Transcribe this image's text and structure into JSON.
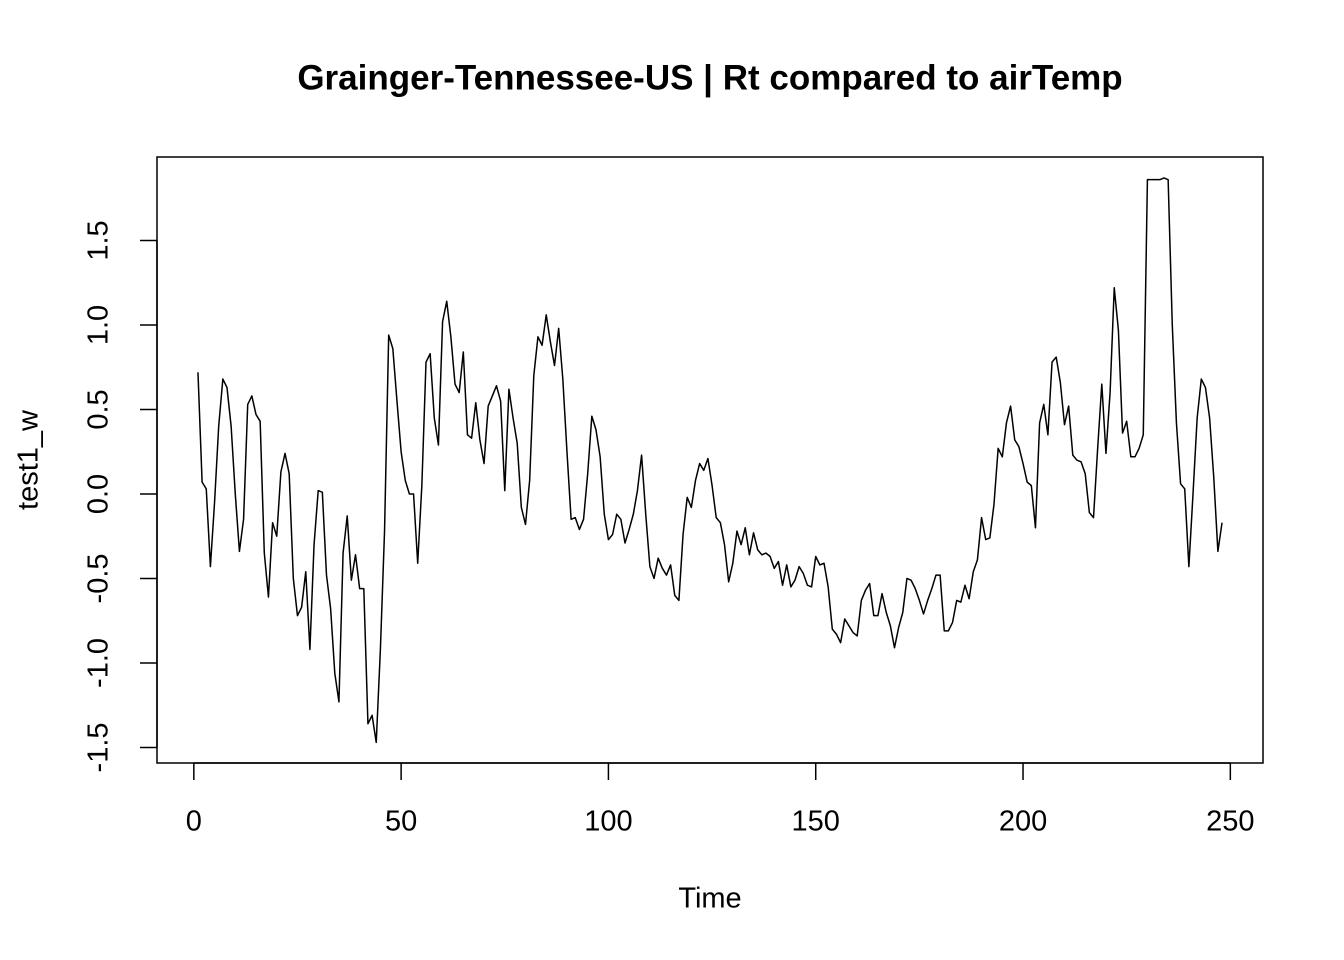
{
  "chart_data": {
    "type": "line",
    "title": "Grainger-Tennessee-US | Rt compared to airTemp",
    "x_label": "Time",
    "y_label": "test1_w",
    "color": "#000000",
    "xlim": [
      -8.88,
      257.88
    ],
    "ylim": [
      -1.592,
      1.994
    ],
    "xticks": [
      0,
      50,
      100,
      150,
      200,
      250
    ],
    "yticks": [
      -1.5,
      {
        "value": -1,
        "label": "-1.0"
      },
      -0.5,
      {
        "value": 0,
        "label": "0.0"
      },
      0.5,
      {
        "value": 1,
        "label": "1.0"
      },
      1.5
    ],
    "x": [
      1,
      2,
      3,
      4,
      5,
      6,
      7,
      8,
      9,
      10,
      11,
      12,
      13,
      14,
      15,
      16,
      17,
      18,
      19,
      20,
      21,
      22,
      23,
      24,
      25,
      26,
      27,
      28,
      29,
      30,
      31,
      32,
      33,
      34,
      35,
      36,
      37,
      38,
      39,
      40,
      41,
      42,
      43,
      44,
      45,
      46,
      47,
      48,
      49,
      50,
      51,
      52,
      53,
      54,
      55,
      56,
      57,
      58,
      59,
      60,
      61,
      62,
      63,
      64,
      65,
      66,
      67,
      68,
      69,
      70,
      71,
      72,
      73,
      74,
      75,
      76,
      77,
      78,
      79,
      80,
      81,
      82,
      83,
      84,
      85,
      86,
      87,
      88,
      89,
      90,
      91,
      92,
      93,
      94,
      95,
      96,
      97,
      98,
      99,
      100,
      101,
      102,
      103,
      104,
      105,
      106,
      107,
      108,
      109,
      110,
      111,
      112,
      113,
      114,
      115,
      116,
      117,
      118,
      119,
      120,
      121,
      122,
      123,
      124,
      125,
      126,
      127,
      128,
      129,
      130,
      131,
      132,
      133,
      134,
      135,
      136,
      137,
      138,
      139,
      140,
      141,
      142,
      143,
      144,
      145,
      146,
      147,
      148,
      149,
      150,
      151,
      152,
      153,
      154,
      155,
      156,
      157,
      158,
      159,
      160,
      161,
      162,
      163,
      164,
      165,
      166,
      167,
      168,
      169,
      170,
      171,
      172,
      173,
      174,
      175,
      176,
      177,
      178,
      179,
      180,
      181,
      182,
      183,
      184,
      185,
      186,
      187,
      188,
      189,
      190,
      191,
      192,
      193,
      194,
      195,
      196,
      197,
      198,
      199,
      200,
      201,
      202,
      203,
      204,
      205,
      206,
      207,
      208,
      209,
      210,
      211,
      212,
      213,
      214,
      215,
      216,
      217,
      218,
      219,
      220,
      221,
      222,
      223,
      224,
      225,
      226,
      227,
      228,
      229,
      230,
      231,
      232,
      233,
      234,
      235,
      236,
      237,
      238,
      239,
      240,
      241,
      242,
      243,
      244,
      245,
      246,
      247,
      248
    ],
    "values": [
      0.72,
      0.07,
      0.03,
      -0.43,
      -0.05,
      0.4,
      0.68,
      0.63,
      0.4,
      0.0,
      -0.34,
      -0.15,
      0.53,
      0.58,
      0.47,
      0.43,
      -0.35,
      -0.61,
      -0.17,
      -0.25,
      0.13,
      0.24,
      0.12,
      -0.5,
      -0.72,
      -0.67,
      -0.46,
      -0.92,
      -0.3,
      0.02,
      0.01,
      -0.48,
      -0.68,
      -1.06,
      -1.23,
      -0.35,
      -0.13,
      -0.51,
      -0.36,
      -0.56,
      -0.56,
      -1.36,
      -1.31,
      -1.47,
      -0.92,
      -0.22,
      0.94,
      0.86,
      0.55,
      0.25,
      0.08,
      0.0,
      0.0,
      -0.41,
      0.05,
      0.78,
      0.83,
      0.45,
      0.29,
      1.02,
      1.14,
      0.93,
      0.65,
      0.6,
      0.84,
      0.35,
      0.33,
      0.54,
      0.32,
      0.18,
      0.52,
      0.58,
      0.64,
      0.55,
      0.02,
      0.62,
      0.45,
      0.3,
      -0.08,
      -0.18,
      0.08,
      0.7,
      0.93,
      0.88,
      1.06,
      0.9,
      0.76,
      0.98,
      0.68,
      0.25,
      -0.15,
      -0.14,
      -0.21,
      -0.15,
      0.12,
      0.46,
      0.38,
      0.22,
      -0.12,
      -0.27,
      -0.24,
      -0.12,
      -0.15,
      -0.29,
      -0.21,
      -0.12,
      0.02,
      0.23,
      -0.12,
      -0.43,
      -0.5,
      -0.38,
      -0.44,
      -0.48,
      -0.42,
      -0.6,
      -0.63,
      -0.24,
      -0.02,
      -0.08,
      0.08,
      0.18,
      0.14,
      0.21,
      0.05,
      -0.14,
      -0.17,
      -0.3,
      -0.52,
      -0.41,
      -0.22,
      -0.3,
      -0.2,
      -0.36,
      -0.23,
      -0.33,
      -0.36,
      -0.35,
      -0.37,
      -0.44,
      -0.4,
      -0.54,
      -0.42,
      -0.55,
      -0.51,
      -0.43,
      -0.47,
      -0.54,
      -0.55,
      -0.37,
      -0.42,
      -0.41,
      -0.55,
      -0.8,
      -0.83,
      -0.88,
      -0.74,
      -0.78,
      -0.82,
      -0.84,
      -0.63,
      -0.57,
      -0.53,
      -0.72,
      -0.72,
      -0.59,
      -0.7,
      -0.78,
      -0.91,
      -0.79,
      -0.7,
      -0.5,
      -0.51,
      -0.56,
      -0.63,
      -0.71,
      -0.63,
      -0.56,
      -0.48,
      -0.48,
      -0.81,
      -0.81,
      -0.76,
      -0.63,
      -0.64,
      -0.54,
      -0.62,
      -0.46,
      -0.39,
      -0.14,
      -0.27,
      -0.26,
      -0.06,
      0.27,
      0.22,
      0.42,
      0.52,
      0.32,
      0.28,
      0.18,
      0.07,
      0.05,
      -0.2,
      0.42,
      0.53,
      0.35,
      0.78,
      0.81,
      0.66,
      0.41,
      0.52,
      0.23,
      0.2,
      0.19,
      0.12,
      -0.11,
      -0.14,
      0.27,
      0.65,
      0.24,
      0.6,
      1.22,
      0.97,
      0.36,
      0.43,
      0.22,
      0.22,
      0.27,
      0.35,
      1.86,
      1.86,
      1.86,
      1.86,
      1.87,
      1.86,
      1.0,
      0.42,
      0.06,
      0.03,
      -0.43,
      0.0,
      0.45,
      0.68,
      0.63,
      0.45,
      0.1,
      -0.34,
      -0.17
    ]
  }
}
